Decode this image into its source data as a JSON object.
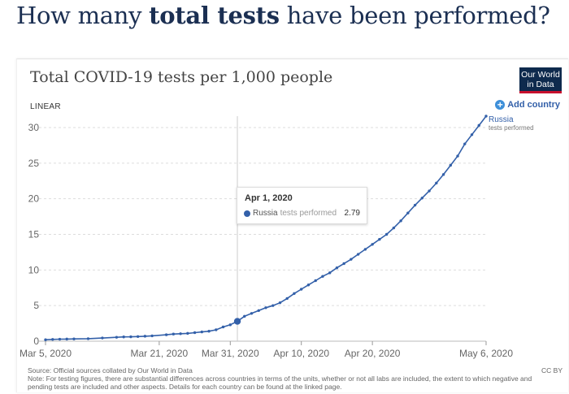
{
  "heading": {
    "prefix": "How many ",
    "bold": "total tests",
    "suffix": " have been performed?"
  },
  "header": {
    "logo_line1": "Our World",
    "logo_line2": "in Data"
  },
  "controls": {
    "scale_label": "LINEAR",
    "add_country_label": "Add country"
  },
  "tooltip": {
    "date": "Apr 1, 2020",
    "country": "Russia",
    "metric": "tests performed",
    "value": "2.79"
  },
  "series_label": {
    "country": "Russia",
    "metric": "tests performed"
  },
  "footer": {
    "source": "Source: Official sources collated by Our World in Data",
    "note": "Note: For testing figures, there are substantial differences across countries in terms of the units, whether or not all labs are included, the extent to which negative and pending tests are included and other aspects. Details for each country can be found at the linked page.",
    "license": "CC BY"
  },
  "colors": {
    "series": "#3360a9",
    "grid": "#dddddd",
    "axis_text": "#666666"
  },
  "chart_data": {
    "type": "line",
    "title": "Total COVID-19 tests per 1,000 people",
    "xlabel": "",
    "ylabel": "",
    "xlim": [
      0,
      62
    ],
    "ylim": [
      0,
      32
    ],
    "yticks": [
      0,
      5,
      10,
      15,
      20,
      25,
      30
    ],
    "xticks": [
      {
        "day": 0,
        "label": "Mar 5, 2020"
      },
      {
        "day": 16,
        "label": "Mar 21, 2020"
      },
      {
        "day": 26,
        "label": "Mar 31, 2020"
      },
      {
        "day": 36,
        "label": "Apr 10, 2020"
      },
      {
        "day": 46,
        "label": "Apr 20, 2020"
      },
      {
        "day": 62,
        "label": "May 6, 2020"
      }
    ],
    "series": [
      {
        "name": "Russia tests performed",
        "x": [
          0,
          1,
          2,
          3,
          4,
          6,
          8,
          10,
          11,
          12,
          13,
          14,
          15,
          17,
          18,
          19,
          20,
          21,
          22,
          23,
          24,
          25,
          26,
          27,
          28,
          29,
          30,
          31,
          32,
          33,
          34,
          35,
          36,
          37,
          38,
          39,
          40,
          41,
          42,
          43,
          44,
          45,
          46,
          47,
          48,
          49,
          50,
          51,
          52,
          53,
          54,
          55,
          56,
          57,
          58,
          59,
          60,
          61,
          62
        ],
        "y": [
          0.2,
          0.25,
          0.28,
          0.3,
          0.32,
          0.35,
          0.45,
          0.55,
          0.6,
          0.62,
          0.65,
          0.7,
          0.75,
          0.9,
          1.0,
          1.05,
          1.1,
          1.2,
          1.3,
          1.4,
          1.6,
          2.0,
          2.3,
          2.79,
          3.5,
          3.9,
          4.3,
          4.7,
          5.0,
          5.4,
          6.0,
          6.7,
          7.3,
          7.9,
          8.5,
          9.1,
          9.6,
          10.3,
          10.9,
          11.5,
          12.2,
          12.9,
          13.6,
          14.3,
          15.0,
          15.9,
          16.9,
          18.0,
          19.1,
          20.1,
          21.1,
          22.2,
          23.4,
          24.7,
          26.0,
          27.7,
          29.0,
          30.3,
          31.6
        ]
      }
    ],
    "highlight": {
      "x": 27,
      "y": 2.79
    }
  }
}
